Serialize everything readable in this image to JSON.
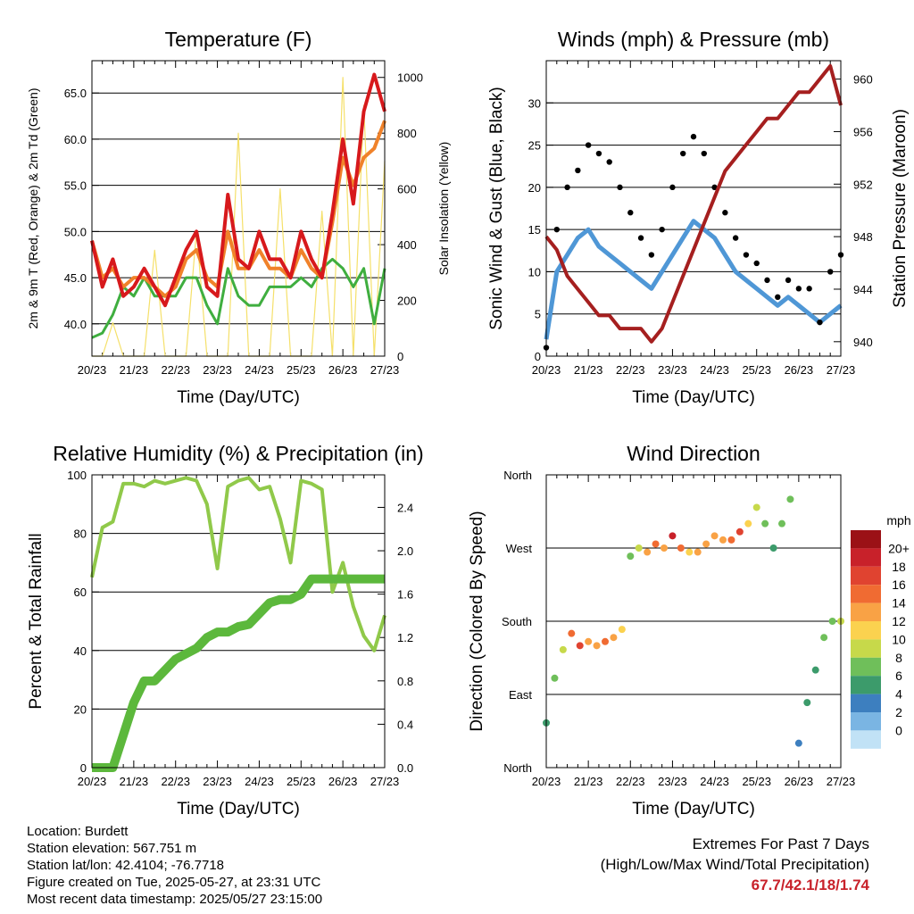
{
  "x_ticks": [
    "20/23",
    "21/23",
    "22/23",
    "23/23",
    "24/23",
    "25/23",
    "26/23",
    "27/23"
  ],
  "x_title": "Time (Day/UTC)",
  "colors": {
    "temp2m": "#d7191c",
    "temp9m": "#f0822a",
    "dew": "#3fae3f",
    "solar": "#f5e06a",
    "wind": "#4f97d6",
    "gust": "#000000",
    "pressure": "#a51f1f",
    "rh": "#90c94a",
    "rain": "#5cb83c"
  },
  "chart_data": [
    {
      "type": "line",
      "title": "Temperature (F)",
      "xlabel": "Time (Day/UTC)",
      "ylabel": "2m & 9m T (Red, Orange) & 2m Td (Green)",
      "ylabel2": "Solar Insolation (Yellow)",
      "ylim": [
        36.5,
        68.5
      ],
      "y2lim": [
        0,
        1060
      ],
      "y_ticks": [
        "40.0",
        "45.0",
        "50.0",
        "55.0",
        "60.0",
        "65.0"
      ],
      "y2_ticks": [
        "0",
        "200",
        "400",
        "600",
        "800",
        "1000"
      ],
      "x": [
        0,
        0.25,
        0.5,
        0.75,
        1,
        1.25,
        1.5,
        1.75,
        2,
        2.25,
        2.5,
        2.75,
        3,
        3.25,
        3.5,
        3.75,
        4,
        4.25,
        4.5,
        4.75,
        5,
        5.25,
        5.5,
        5.75,
        6,
        6.25,
        6.5,
        6.75,
        7
      ],
      "series": [
        {
          "name": "2m T",
          "color_key": "temp2m",
          "axis": "left",
          "values": [
            49,
            44,
            47,
            43,
            44,
            46,
            44,
            42,
            45,
            48,
            50,
            44,
            43,
            54,
            47,
            46,
            50,
            47,
            47,
            45,
            50,
            47,
            45,
            52,
            60,
            53,
            63,
            67,
            63
          ]
        },
        {
          "name": "9m T",
          "color_key": "temp9m",
          "axis": "left",
          "values": [
            49,
            45,
            46,
            44,
            45,
            45,
            44,
            43,
            44,
            47,
            48,
            45,
            44,
            50,
            46,
            46,
            48,
            46,
            46,
            45,
            48,
            46,
            45,
            51,
            58,
            55,
            58,
            59,
            62
          ]
        },
        {
          "name": "2m Td",
          "color_key": "dew",
          "axis": "left",
          "values": [
            38.5,
            39,
            41,
            44,
            43,
            45,
            43,
            43,
            43,
            45,
            45,
            42,
            40,
            46,
            43,
            42,
            42,
            44,
            44,
            44,
            45,
            44,
            46,
            47,
            46,
            44,
            46,
            40,
            46
          ]
        },
        {
          "name": "Solar",
          "color_key": "solar",
          "axis": "right",
          "values": [
            0,
            0,
            120,
            0,
            0,
            0,
            380,
            0,
            0,
            0,
            450,
            0,
            0,
            0,
            800,
            0,
            0,
            0,
            600,
            0,
            0,
            0,
            520,
            0,
            1000,
            0,
            900,
            0,
            700
          ]
        }
      ]
    },
    {
      "type": "line",
      "title": "Winds (mph) & Pressure (mb)",
      "xlabel": "Time (Day/UTC)",
      "ylabel": "Sonic Wind & Gust (Blue, Black)",
      "ylabel2": "Station Pressure (Maroon)",
      "ylim": [
        0,
        35
      ],
      "y2lim": [
        938.9,
        961.4
      ],
      "y_ticks": [
        "0",
        "5",
        "10",
        "15",
        "20",
        "25",
        "30"
      ],
      "y2_ticks": [
        "940",
        "944",
        "948",
        "952",
        "956",
        "960"
      ],
      "x": [
        0,
        0.25,
        0.5,
        0.75,
        1,
        1.25,
        1.5,
        1.75,
        2,
        2.25,
        2.5,
        2.75,
        3,
        3.25,
        3.5,
        3.75,
        4,
        4.25,
        4.5,
        4.75,
        5,
        5.25,
        5.5,
        5.75,
        6,
        6.25,
        6.5,
        6.75,
        7
      ],
      "series": [
        {
          "name": "Wind",
          "color_key": "wind",
          "axis": "left",
          "values": [
            2,
            10,
            12,
            14,
            15,
            13,
            12,
            11,
            10,
            9,
            8,
            10,
            12,
            14,
            16,
            15,
            14,
            12,
            10,
            9,
            8,
            7,
            6,
            7,
            6,
            5,
            4,
            5,
            6
          ]
        },
        {
          "name": "Gust",
          "color_key": "gust",
          "axis": "left",
          "values": [
            1,
            15,
            20,
            22,
            25,
            24,
            23,
            20,
            17,
            14,
            12,
            15,
            20,
            24,
            26,
            24,
            20,
            17,
            14,
            12,
            11,
            9,
            7,
            9,
            8,
            8,
            4,
            10,
            12
          ]
        },
        {
          "name": "Pressure",
          "color_key": "pressure",
          "axis": "right",
          "values": [
            948,
            947,
            945,
            944,
            943,
            942,
            942,
            941,
            941,
            941,
            940,
            941,
            943,
            945,
            947,
            949,
            951,
            953,
            954,
            955,
            956,
            957,
            957,
            958,
            959,
            959,
            960,
            961,
            958
          ]
        }
      ]
    },
    {
      "type": "line",
      "title": "Relative Humidity (%) & Precipitation (in)",
      "xlabel": "Time (Day/UTC)",
      "ylabel": "Percent & Total Rainfall",
      "ylim": [
        0,
        100
      ],
      "y2lim": [
        0,
        2.7
      ],
      "y_ticks": [
        "0",
        "20",
        "40",
        "60",
        "80",
        "100"
      ],
      "y2_ticks": [
        "0.0",
        "0.4",
        "0.8",
        "1.2",
        "1.6",
        "2.0",
        "2.4"
      ],
      "x": [
        0,
        0.25,
        0.5,
        0.75,
        1,
        1.25,
        1.5,
        1.75,
        2,
        2.25,
        2.5,
        2.75,
        3,
        3.25,
        3.5,
        3.75,
        4,
        4.25,
        4.5,
        4.75,
        5,
        5.25,
        5.5,
        5.75,
        6,
        6.25,
        6.5,
        6.75,
        7
      ],
      "series": [
        {
          "name": "RH",
          "color_key": "rh",
          "axis": "left",
          "values": [
            65,
            82,
            84,
            97,
            97,
            96,
            98,
            97,
            98,
            99,
            98,
            90,
            68,
            96,
            98,
            99,
            95,
            96,
            85,
            70,
            98,
            97,
            95,
            60,
            70,
            55,
            45,
            40,
            52
          ]
        },
        {
          "name": "Total Rain",
          "color_key": "rain",
          "axis": "right",
          "values": [
            0,
            0,
            0,
            0.3,
            0.6,
            0.8,
            0.8,
            0.9,
            1.0,
            1.05,
            1.1,
            1.2,
            1.25,
            1.25,
            1.3,
            1.32,
            1.42,
            1.52,
            1.55,
            1.55,
            1.6,
            1.74,
            1.74,
            1.74,
            1.74,
            1.74,
            1.74,
            1.74,
            1.74
          ]
        }
      ]
    },
    {
      "type": "scatter",
      "title": "Wind Direction",
      "xlabel": "Time (Day/UTC)",
      "ylabel": "Direction (Colored By Speed)",
      "y_ticks": [
        "North",
        "East",
        "South",
        "West",
        "North"
      ],
      "ylim": [
        0,
        360
      ],
      "legend_title": "mph",
      "legend_labels": [
        "20+",
        "18",
        "16",
        "14",
        "12",
        "10",
        "8",
        "6",
        "4",
        "2",
        "0"
      ],
      "legend_colors": [
        "#9b1116",
        "#c8212a",
        "#e04330",
        "#f06b32",
        "#f9a245",
        "#fbd24f",
        "#c7d94a",
        "#6fbf5a",
        "#3c9b6b",
        "#3d7fbf",
        "#7ab5e3",
        "#c1e2f6"
      ],
      "x": [
        0.0,
        0.2,
        0.4,
        0.6,
        0.8,
        1.0,
        1.2,
        1.4,
        1.6,
        1.8,
        2.0,
        2.2,
        2.4,
        2.6,
        2.8,
        3.0,
        3.2,
        3.4,
        3.6,
        3.8,
        4.0,
        4.2,
        4.4,
        4.6,
        4.8,
        5.0,
        5.2,
        5.4,
        5.6,
        5.8,
        6.0,
        6.2,
        6.4,
        6.6,
        6.8,
        7.0
      ],
      "series": [
        {
          "name": "direction",
          "values": [
            55,
            110,
            145,
            165,
            150,
            155,
            150,
            155,
            160,
            170,
            260,
            270,
            265,
            275,
            270,
            285,
            270,
            265,
            265,
            275,
            285,
            280,
            280,
            290,
            300,
            320,
            300,
            270,
            300,
            330,
            30,
            80,
            120,
            160,
            180,
            180
          ]
        }
      ],
      "speed": [
        4,
        6,
        8,
        14,
        16,
        12,
        12,
        14,
        13,
        10,
        6,
        8,
        12,
        14,
        12,
        18,
        14,
        11,
        12,
        12,
        13,
        12,
        14,
        16,
        10,
        8,
        6,
        4,
        6,
        6,
        2,
        4,
        5,
        6,
        7,
        8
      ]
    }
  ],
  "info": {
    "location": "Location: Burdett",
    "elevation": "Station elevation: 567.751 m",
    "latlon": "Station lat/lon: 42.4104; -76.7718",
    "created": "Figure created on Tue, 2025-05-27, at 23:31 UTC",
    "recent": "Most recent data timestamp: 2025/05/27 23:15:00"
  },
  "extremes": {
    "title": "Extremes For Past 7 Days",
    "subtitle": "(High/Low/Max Wind/Total Precipitation)",
    "values": "67.7/42.1/18/1.74"
  }
}
